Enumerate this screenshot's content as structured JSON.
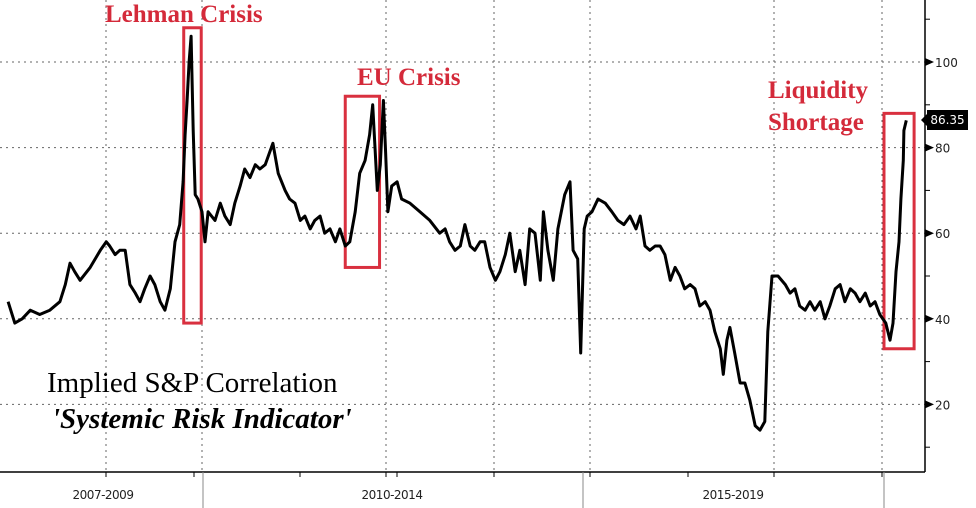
{
  "chart_data": {
    "type": "line",
    "title": "Implied S&P Correlation",
    "subtitle": "'Systemic Risk Indicator'",
    "xlabel": "",
    "ylabel": "",
    "y_axis_side": "right",
    "ylim": [
      4,
      114
    ],
    "y_ticks": [
      20,
      40,
      60,
      80,
      100
    ],
    "x_period_labels": [
      "2007-2009",
      "2010-2014",
      "2015-2019"
    ],
    "last_value_label": "86.35",
    "grid": true,
    "annotations": [
      {
        "text": "Lehman Crisis",
        "x_range": [
          2009.73,
          2009.99
        ],
        "y_range": [
          39,
          108
        ]
      },
      {
        "text": "EU Crisis",
        "x_range": [
          2011.88,
          2012.33
        ],
        "y_range": [
          52,
          92
        ]
      },
      {
        "text_lines": [
          "Liquidity",
          "Shortage"
        ],
        "x_range": [
          2020.0,
          2020.5
        ],
        "y_range": [
          33,
          88
        ]
      }
    ],
    "colors": {
      "line": "#000000",
      "annotation": "#d42a3a",
      "box": "#d9303f",
      "grid": "#555555"
    },
    "series": [
      {
        "name": "Implied S&P Correlation",
        "x": [
          2007.12,
          2007.22,
          2007.33,
          2007.45,
          2007.59,
          2007.74,
          2007.89,
          2007.97,
          2008.04,
          2008.11,
          2008.19,
          2008.34,
          2008.49,
          2008.58,
          2008.63,
          2008.71,
          2008.78,
          2008.86,
          2008.93,
          2009.01,
          2009.08,
          2009.15,
          2009.23,
          2009.3,
          2009.38,
          2009.45,
          2009.53,
          2009.6,
          2009.67,
          2009.72,
          2009.75,
          2009.78,
          2009.81,
          2009.84,
          2009.87,
          2009.9,
          2009.94,
          2010.0,
          2010.04,
          2010.08,
          2010.17,
          2010.24,
          2010.3,
          2010.37,
          2010.43,
          2010.5,
          2010.56,
          2010.63,
          2010.7,
          2010.76,
          2010.83,
          2010.89,
          2010.93,
          2011.0,
          2011.09,
          2011.15,
          2011.22,
          2011.29,
          2011.35,
          2011.42,
          2011.48,
          2011.55,
          2011.61,
          2011.68,
          2011.75,
          2011.81,
          2011.88,
          2011.94,
          2012.01,
          2012.07,
          2012.14,
          2012.2,
          2012.24,
          2012.3,
          2012.34,
          2012.38,
          2012.41,
          2012.44,
          2012.49,
          2012.56,
          2012.62,
          2012.73,
          2012.86,
          2012.99,
          2013.12,
          2013.19,
          2013.25,
          2013.32,
          2013.39,
          2013.45,
          2013.52,
          2013.58,
          2013.65,
          2013.71,
          2013.78,
          2013.85,
          2013.91,
          2013.98,
          2014.04,
          2014.11,
          2014.17,
          2014.24,
          2014.3,
          2014.37,
          2014.44,
          2014.48,
          2014.54,
          2014.61,
          2014.67,
          2014.76,
          2014.83,
          2014.87,
          2014.93,
          2014.97,
          2015.02,
          2015.07,
          2015.15,
          2015.25,
          2015.37,
          2015.48,
          2015.58,
          2015.68,
          2015.78,
          2015.88,
          2015.95,
          2016.03,
          2016.11,
          2016.2,
          2016.28,
          2016.36,
          2016.45,
          2016.53,
          2016.61,
          2016.69,
          2016.78,
          2016.86,
          2016.94,
          2017.03,
          2017.11,
          2017.19,
          2017.28,
          2017.33,
          2017.39,
          2017.44,
          2017.52,
          2017.61,
          2017.69,
          2017.77,
          2017.86,
          2017.94,
          2018.02,
          2018.07,
          2018.14,
          2018.24,
          2018.36,
          2018.44,
          2018.52,
          2018.6,
          2018.69,
          2018.77,
          2018.85,
          2018.94,
          2019.02,
          2019.1,
          2019.19,
          2019.27,
          2019.35,
          2019.44,
          2019.52,
          2019.6,
          2019.69,
          2019.77,
          2019.85,
          2019.93,
          2020.03,
          2020.1,
          2020.15,
          2020.2,
          2020.25,
          2020.28,
          2020.32,
          2020.33,
          2020.37
        ],
        "values": [
          44,
          39,
          40,
          42,
          41,
          42,
          44,
          48,
          53,
          51,
          49,
          52,
          56,
          58,
          57,
          55,
          56,
          56,
          48,
          46,
          44,
          47,
          50,
          48,
          44,
          42,
          47,
          58,
          62,
          72,
          83,
          91,
          100,
          106,
          84,
          69,
          68,
          65,
          58,
          65,
          63,
          67,
          64,
          62,
          67,
          71,
          75,
          73,
          76,
          75,
          76,
          79,
          81,
          74,
          70,
          68,
          67,
          63,
          64,
          61,
          63,
          64,
          60,
          61,
          58,
          61,
          57,
          58,
          65,
          74,
          77,
          83,
          90,
          70,
          76,
          91,
          79,
          65,
          71,
          72,
          68,
          67,
          65,
          63,
          60,
          61,
          58,
          56,
          57,
          62,
          57,
          56,
          58,
          58,
          52,
          49,
          51,
          55,
          60,
          51,
          56,
          48,
          61,
          60,
          49,
          65,
          56,
          49,
          61,
          69,
          72,
          56,
          54,
          32,
          61,
          64,
          65,
          68,
          67,
          65,
          63,
          62,
          64,
          61,
          64,
          57,
          56,
          57,
          57,
          55,
          49,
          52,
          50,
          47,
          48,
          47,
          43,
          44,
          42,
          37,
          33,
          27,
          35,
          38,
          32,
          25,
          25,
          21,
          15,
          14,
          16,
          37,
          50,
          50,
          48,
          46,
          47,
          43,
          42,
          44,
          42,
          44,
          40,
          43,
          47,
          48,
          44,
          47,
          46,
          44,
          46,
          43,
          44,
          41,
          39,
          35,
          39,
          51,
          58,
          68,
          77,
          84,
          86.35
        ]
      }
    ]
  }
}
